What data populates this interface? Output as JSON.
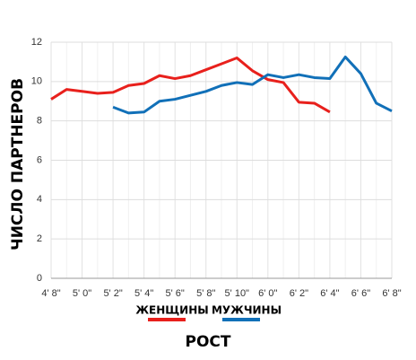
{
  "chart_data": {
    "type": "line",
    "y_label": "ЧИСЛО ПАРТНЕРОВ",
    "x_label": "РОСТ",
    "categories": [
      "4' 8\"",
      null,
      "5' 0\"",
      null,
      "5' 2\"",
      null,
      "5' 4\"",
      null,
      "5' 6\"",
      null,
      "5' 8\"",
      null,
      "5' 10\"",
      null,
      "6' 0\"",
      null,
      "6' 2\"",
      null,
      "6' 4\"",
      null,
      "6' 6\"",
      null,
      "6' 8\""
    ],
    "series": [
      {
        "name": "ЖЕНЩИНЫ",
        "color": "#e8201c",
        "values": [
          9.1,
          9.6,
          9.5,
          9.4,
          9.45,
          9.8,
          9.9,
          10.3,
          10.15,
          10.3,
          10.6,
          10.9,
          11.2,
          10.55,
          10.1,
          9.95,
          8.95,
          8.9,
          8.45,
          null,
          null,
          null,
          null
        ]
      },
      {
        "name": "МУЖЧИНЫ",
        "color": "#1170b8",
        "values": [
          null,
          null,
          null,
          null,
          8.7,
          8.4,
          8.45,
          9.0,
          9.1,
          9.3,
          9.5,
          9.8,
          9.95,
          9.85,
          10.35,
          10.2,
          10.35,
          10.2,
          10.15,
          11.25,
          10.4,
          8.9,
          8.5
        ]
      }
    ],
    "ylim": [
      0,
      12
    ],
    "yticks": [
      0,
      2,
      4,
      6,
      8,
      10,
      12
    ],
    "grid": true
  }
}
